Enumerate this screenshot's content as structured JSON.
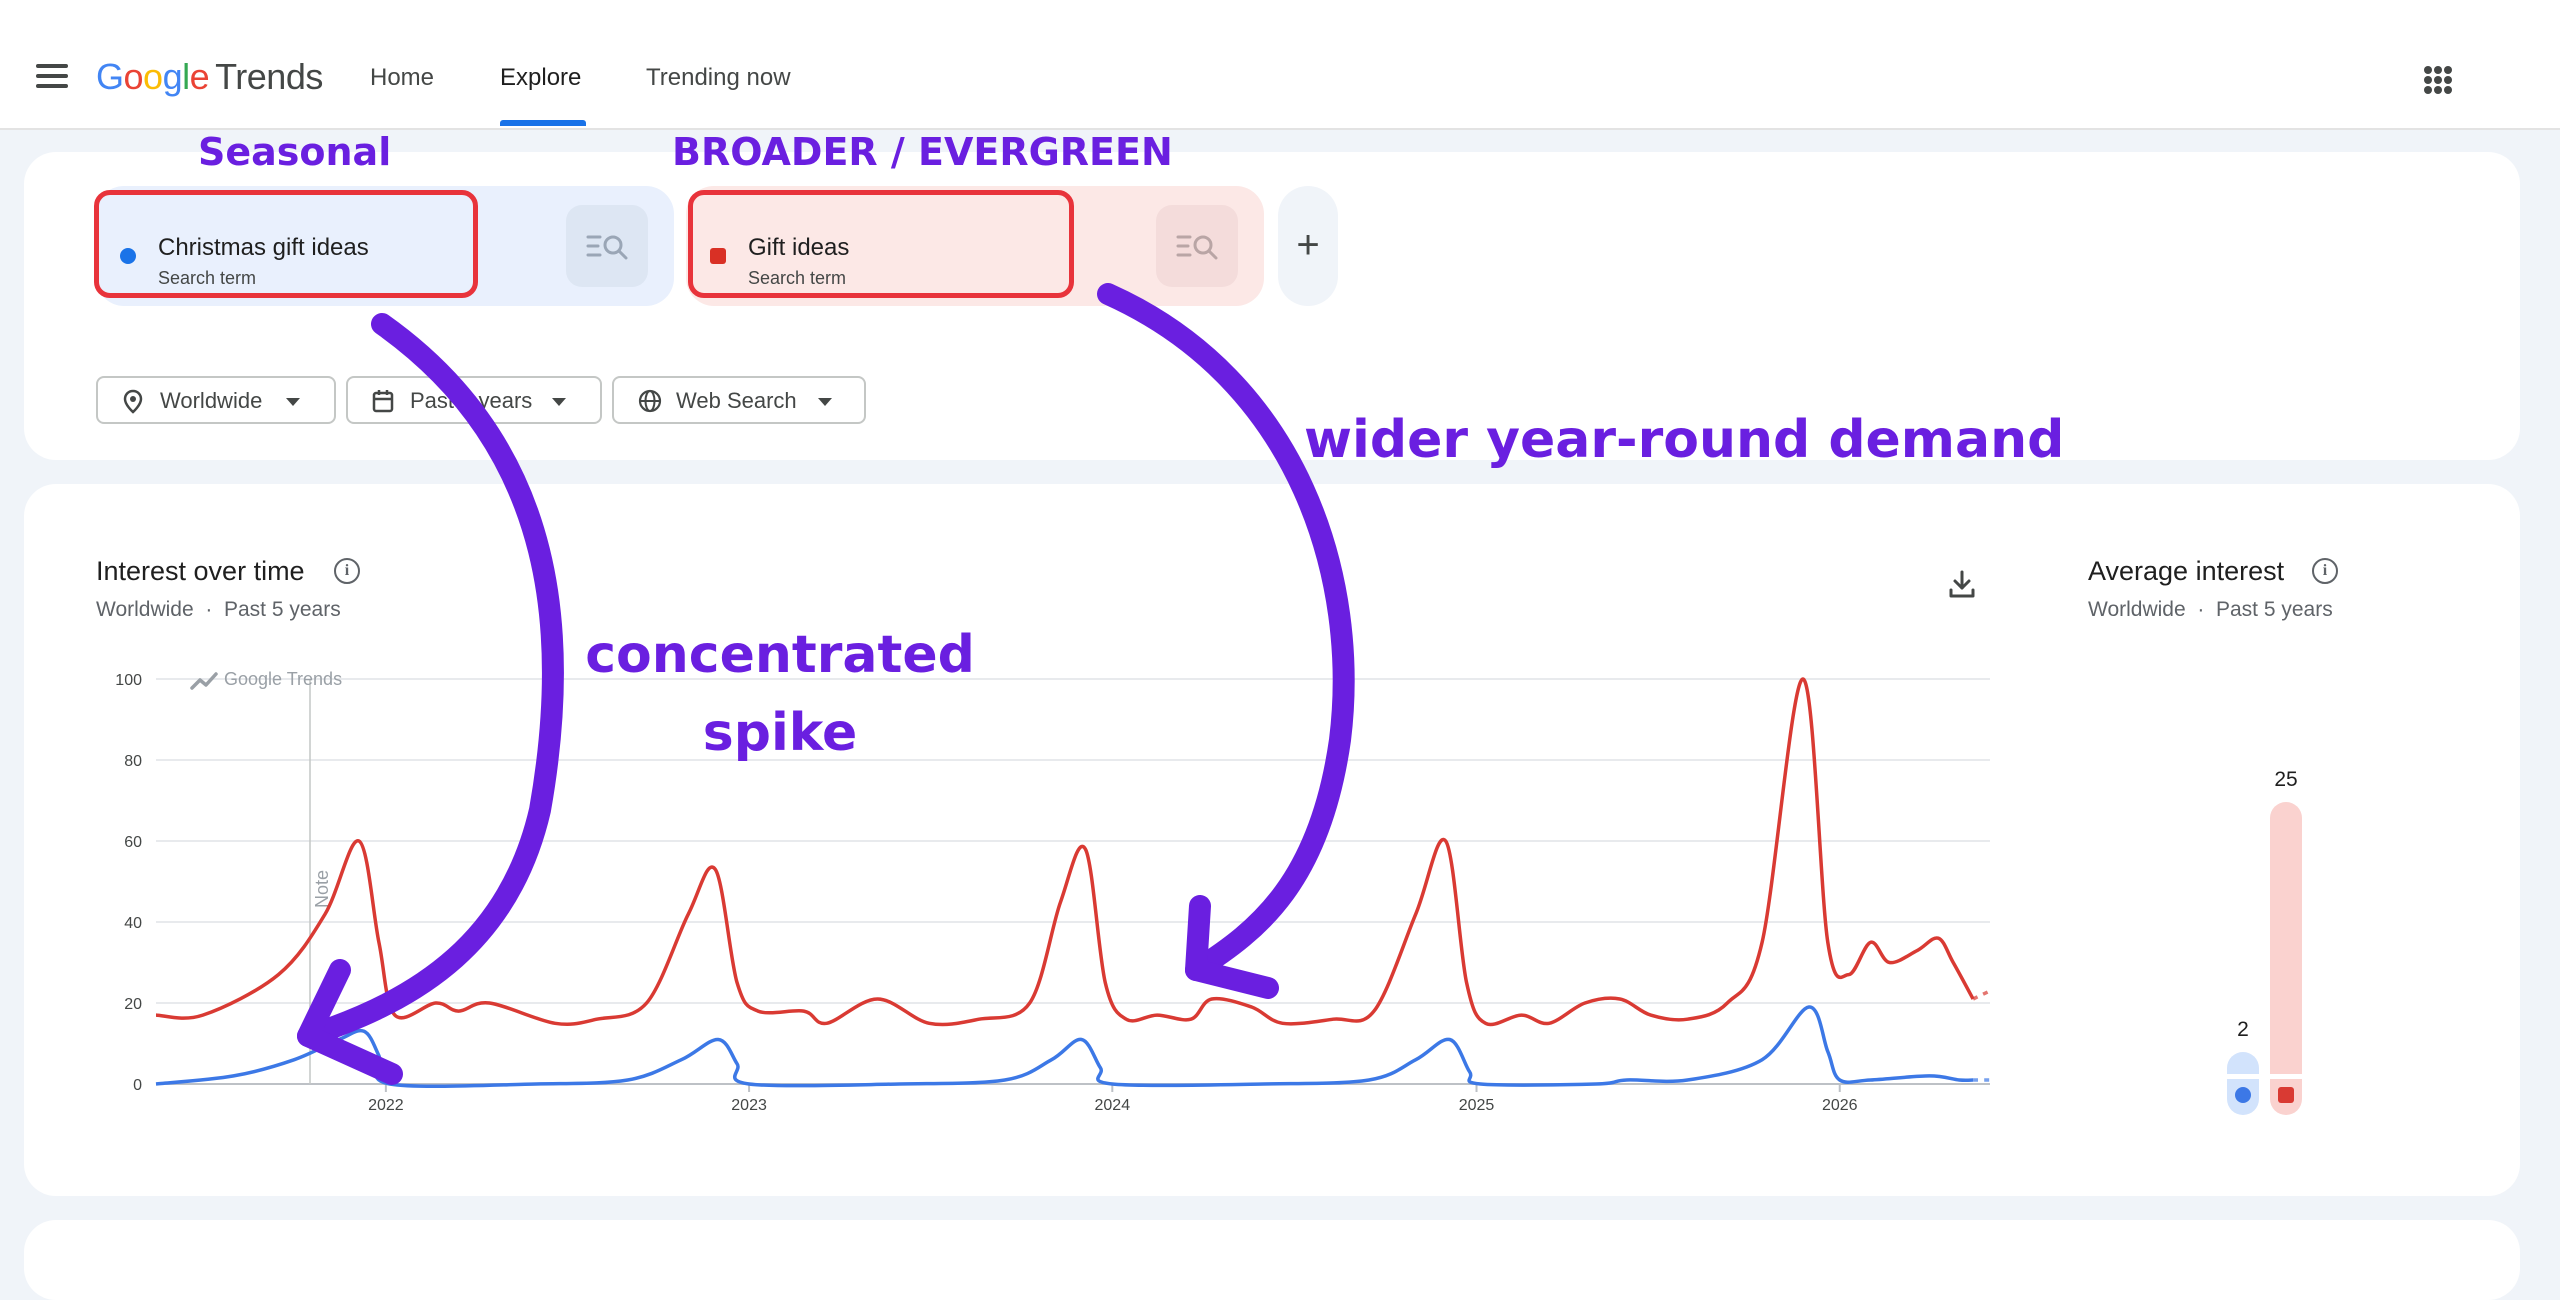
{
  "header": {
    "logo_google": "Google",
    "logo_trends": "Trends",
    "nav": {
      "home": "Home",
      "explore": "Explore",
      "trending": "Trending now"
    }
  },
  "terms": [
    {
      "title": "Christmas gift ideas",
      "subtitle": "Search term",
      "color": "#1a73e8"
    },
    {
      "title": "Gift ideas",
      "subtitle": "Search term",
      "color": "#d93025"
    }
  ],
  "filters": {
    "location": "Worldwide",
    "time": "Past 5 years",
    "property": "Web Search"
  },
  "interest_over_time": {
    "title": "Interest over time",
    "subtitle_location": "Worldwide",
    "subtitle_sep": "·",
    "subtitle_time": "Past 5 years",
    "watermark": "Google Trends",
    "note_label": "Note"
  },
  "average_interest": {
    "title": "Average interest",
    "subtitle_location": "Worldwide",
    "subtitle_sep": "·",
    "subtitle_time": "Past 5 years",
    "values": [
      2,
      25
    ]
  },
  "annotations": {
    "seasonal": "Seasonal",
    "broader": "BROADER / EVERGREEN",
    "wider": "wider year-round demand",
    "spike_line1": "concentrated",
    "spike_line2": "spike"
  },
  "colors": {
    "blue": "#3c78e6",
    "red": "#d93a33",
    "annotation": "#6a1fe0",
    "highlight_box": "#e8333b"
  },
  "chart_data": {
    "type": "line",
    "y_ticks": [
      0,
      20,
      40,
      60,
      80,
      100
    ],
    "ylim": [
      0,
      100
    ],
    "x_tick_labels": [
      "2022",
      "2023",
      "2024",
      "2025",
      "2026"
    ],
    "x_tick_dates": [
      "2022-01-01",
      "2023-01-01",
      "2024-01-01",
      "2025-01-01",
      "2026-01-01"
    ],
    "x_range": [
      "2021-05-15",
      "2026-06-01"
    ],
    "series": [
      {
        "name": "Christmas gift ideas",
        "color": "#3c78e6",
        "points": [
          [
            "2021-05-15",
            0
          ],
          [
            "2021-08-01",
            2
          ],
          [
            "2021-10-01",
            6
          ],
          [
            "2021-11-15",
            11
          ],
          [
            "2021-12-10",
            13
          ],
          [
            "2021-12-25",
            7
          ],
          [
            "2022-01-05",
            0
          ],
          [
            "2022-06-01",
            0
          ],
          [
            "2022-09-01",
            1
          ],
          [
            "2022-10-25",
            6
          ],
          [
            "2022-12-01",
            11
          ],
          [
            "2022-12-20",
            5
          ],
          [
            "2023-01-01",
            0
          ],
          [
            "2023-06-01",
            0
          ],
          [
            "2023-09-15",
            1
          ],
          [
            "2023-11-01",
            6
          ],
          [
            "2023-12-01",
            11
          ],
          [
            "2023-12-20",
            4
          ],
          [
            "2024-01-01",
            0
          ],
          [
            "2024-06-01",
            0
          ],
          [
            "2024-09-15",
            1
          ],
          [
            "2024-11-01",
            6
          ],
          [
            "2024-12-05",
            11
          ],
          [
            "2024-12-25",
            3
          ],
          [
            "2025-01-05",
            0
          ],
          [
            "2025-05-01",
            0
          ],
          [
            "2025-06-01",
            1
          ],
          [
            "2025-08-01",
            1
          ],
          [
            "2025-10-15",
            6
          ],
          [
            "2025-12-01",
            19
          ],
          [
            "2025-12-20",
            8
          ],
          [
            "2026-01-01",
            1
          ],
          [
            "2026-02-01",
            1
          ],
          [
            "2026-04-01",
            2
          ],
          [
            "2026-05-01",
            1
          ],
          [
            "2026-05-15",
            1
          ]
        ]
      },
      {
        "name": "Gift ideas",
        "color": "#d93a33",
        "points": [
          [
            "2021-05-15",
            17
          ],
          [
            "2021-07-01",
            17
          ],
          [
            "2021-09-15",
            27
          ],
          [
            "2021-11-01",
            42
          ],
          [
            "2021-12-05",
            60
          ],
          [
            "2021-12-25",
            35
          ],
          [
            "2022-01-10",
            17
          ],
          [
            "2022-02-20",
            20
          ],
          [
            "2022-03-15",
            18
          ],
          [
            "2022-04-15",
            20
          ],
          [
            "2022-06-20",
            15
          ],
          [
            "2022-08-01",
            16
          ],
          [
            "2022-09-20",
            20
          ],
          [
            "2022-11-01",
            42
          ],
          [
            "2022-11-28",
            53
          ],
          [
            "2022-12-20",
            25
          ],
          [
            "2023-01-10",
            18
          ],
          [
            "2023-02-25",
            18
          ],
          [
            "2023-03-20",
            15
          ],
          [
            "2023-05-10",
            21
          ],
          [
            "2023-07-01",
            15
          ],
          [
            "2023-08-20",
            16
          ],
          [
            "2023-10-10",
            20
          ],
          [
            "2023-11-10",
            45
          ],
          [
            "2023-12-05",
            58
          ],
          [
            "2023-12-25",
            25
          ],
          [
            "2024-01-15",
            16
          ],
          [
            "2024-02-15",
            17
          ],
          [
            "2024-03-20",
            16
          ],
          [
            "2024-04-10",
            21
          ],
          [
            "2024-05-20",
            19
          ],
          [
            "2024-06-20",
            15
          ],
          [
            "2024-08-10",
            16
          ],
          [
            "2024-09-20",
            18
          ],
          [
            "2024-11-01",
            42
          ],
          [
            "2024-12-01",
            60
          ],
          [
            "2024-12-22",
            25
          ],
          [
            "2025-01-10",
            15
          ],
          [
            "2025-02-15",
            17
          ],
          [
            "2025-03-15",
            15
          ],
          [
            "2025-04-20",
            20
          ],
          [
            "2025-05-25",
            21
          ],
          [
            "2025-06-25",
            17
          ],
          [
            "2025-08-01",
            16
          ],
          [
            "2025-09-10",
            20
          ],
          [
            "2025-10-15",
            35
          ],
          [
            "2025-11-25",
            100
          ],
          [
            "2025-12-20",
            35
          ],
          [
            "2026-01-10",
            27
          ],
          [
            "2026-02-01",
            35
          ],
          [
            "2026-02-20",
            30
          ],
          [
            "2026-03-20",
            33
          ],
          [
            "2026-04-10",
            36
          ],
          [
            "2026-04-25",
            30
          ],
          [
            "2026-05-15",
            21
          ]
        ]
      }
    ],
    "partial_tail": {
      "Christmas gift ideas": [
        [
          "2026-05-15",
          1
        ],
        [
          "2026-06-01",
          1
        ]
      ],
      "Gift ideas": [
        [
          "2026-05-15",
          21
        ],
        [
          "2026-06-01",
          23
        ]
      ]
    }
  }
}
